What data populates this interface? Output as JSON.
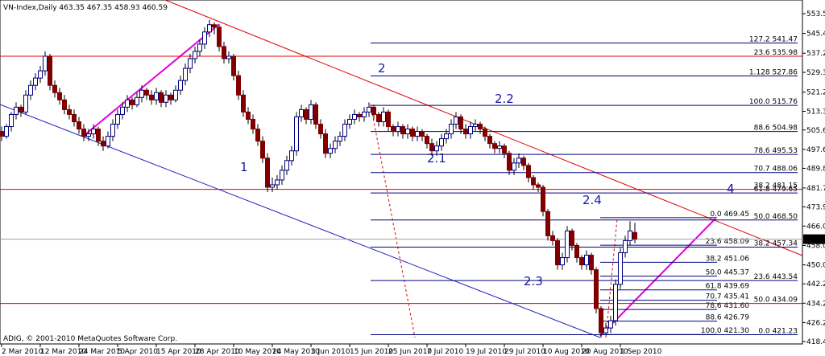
{
  "chart_data": {
    "type": "candlestick",
    "title": "VN-Index,Daily  463.35 467.35 458.93 460.59",
    "copyright": "ADIG, © 2001-2010 MetaQuotes Software Corp.",
    "up_color": "#ffffff",
    "down_color": "#800000",
    "outline_color": "#000080",
    "xlim": [
      0,
      165.5
    ],
    "xticks": [
      {
        "value": 0,
        "label": "2 Mar 2010"
      },
      {
        "value": 8,
        "label": "12 Mar 2010"
      },
      {
        "value": 16,
        "label": "24 Mar 2010"
      },
      {
        "value": 24,
        "label": "5 Apr 2010"
      },
      {
        "value": 32,
        "label": "15 Apr 2010"
      },
      {
        "value": 40,
        "label": "28 Apr 2010"
      },
      {
        "value": 48,
        "label": "10 May 2010"
      },
      {
        "value": 56,
        "label": "24 May 2010"
      },
      {
        "value": 64,
        "label": "3 Jun 2010"
      },
      {
        "value": 72,
        "label": "15 Jun 2010"
      },
      {
        "value": 80,
        "label": "25 Jun 2010"
      },
      {
        "value": 88,
        "label": "7 Jul 2010"
      },
      {
        "value": 96,
        "label": "19 Jul 2010"
      },
      {
        "value": 104,
        "label": "29 Jul 2010"
      },
      {
        "value": 112,
        "label": "10 Aug 2010"
      },
      {
        "value": 120,
        "label": "20 Aug 2010"
      },
      {
        "value": 128,
        "label": "1 Sep 2010"
      }
    ],
    "ylim": [
      418.4,
      553.55
    ],
    "yticks": [
      553.55,
      {
        "value": 545.4,
        "label": "545.40"
      },
      537.25,
      529.35,
      {
        "value": 521.2,
        "label": "521.20"
      },
      {
        "value": 513.3,
        "label": "513.30"
      },
      {
        "value": 505.6,
        "label": "505.60"
      },
      {
        "value": 497.6,
        "label": "497.60"
      },
      {
        "value": 489.8,
        "label": "489.80"
      },
      {
        "value": 481.7,
        "label": "481.70"
      },
      {
        "value": 473.9,
        "label": "473.90"
      },
      {
        "value": 466,
        "label": "466.00"
      },
      {
        "value": 458,
        "label": "458.00"
      },
      {
        "value": 450,
        "label": "450.00"
      },
      {
        "value": 442.2,
        "label": "442.20"
      },
      {
        "value": 434.2,
        "label": "434.20"
      },
      {
        "value": 426.2,
        "label": "426.20"
      },
      {
        "value": 418.4,
        "label": "418.40"
      }
    ],
    "last_price": {
      "value": 460.59,
      "label": "460.59"
    },
    "candles": [
      [
        505,
        507,
        501,
        503
      ],
      [
        503,
        508,
        502,
        507
      ],
      [
        507,
        513,
        505,
        512
      ],
      [
        512,
        517,
        510,
        515
      ],
      [
        515,
        516,
        511,
        513
      ],
      [
        513,
        522,
        512,
        520
      ],
      [
        520,
        526,
        518,
        524
      ],
      [
        524,
        529,
        522,
        527
      ],
      [
        527,
        532,
        525,
        530
      ],
      [
        530,
        538,
        528,
        536
      ],
      [
        536,
        537,
        522,
        524
      ],
      [
        524,
        526,
        519,
        521
      ],
      [
        521,
        523,
        516,
        518
      ],
      [
        518,
        520,
        512,
        514
      ],
      [
        514,
        516,
        510,
        512
      ],
      [
        512,
        514,
        507,
        509
      ],
      [
        509,
        511,
        504,
        506
      ],
      [
        506,
        508,
        501,
        503
      ],
      [
        503,
        506,
        501,
        504
      ],
      [
        504,
        508,
        502,
        506
      ],
      [
        506,
        507,
        499,
        501
      ],
      [
        501,
        503,
        497,
        499
      ],
      [
        499,
        505,
        498,
        503
      ],
      [
        503,
        510,
        501,
        508
      ],
      [
        508,
        514,
        506,
        512
      ],
      [
        512,
        517,
        510,
        515
      ],
      [
        515,
        520,
        513,
        518
      ],
      [
        518,
        519,
        514,
        516
      ],
      [
        516,
        521,
        515,
        519
      ],
      [
        519,
        524,
        517,
        522
      ],
      [
        522,
        523,
        518,
        520
      ],
      [
        520,
        522,
        516,
        518
      ],
      [
        518,
        523,
        516,
        521
      ],
      [
        521,
        522,
        515,
        517
      ],
      [
        517,
        522,
        515,
        520
      ],
      [
        520,
        521,
        516,
        518
      ],
      [
        518,
        524,
        517,
        522
      ],
      [
        522,
        528,
        520,
        526
      ],
      [
        526,
        533,
        524,
        531
      ],
      [
        531,
        537,
        529,
        535
      ],
      [
        535,
        540,
        533,
        538
      ],
      [
        538,
        543,
        536,
        541
      ],
      [
        541,
        548,
        539,
        546
      ],
      [
        546,
        551,
        544,
        549
      ],
      [
        549,
        550,
        545,
        548
      ],
      [
        548,
        549,
        538,
        540
      ],
      [
        540,
        542,
        533,
        535
      ],
      [
        535,
        538,
        533,
        536
      ],
      [
        536,
        537,
        526,
        528
      ],
      [
        528,
        530,
        518,
        520
      ],
      [
        520,
        522,
        511,
        513
      ],
      [
        513,
        515,
        508,
        510
      ],
      [
        510,
        512,
        504,
        506
      ],
      [
        506,
        508,
        499,
        501
      ],
      [
        501,
        503,
        492,
        494
      ],
      [
        494,
        496,
        480,
        482
      ],
      [
        482,
        486,
        480,
        483
      ],
      [
        483,
        487,
        481,
        485
      ],
      [
        485,
        491,
        483,
        489
      ],
      [
        489,
        495,
        487,
        493
      ],
      [
        493,
        499,
        491,
        497
      ],
      [
        497,
        513,
        495,
        511
      ],
      [
        511,
        516,
        509,
        514
      ],
      [
        514,
        515,
        508,
        510
      ],
      [
        510,
        518,
        508,
        516
      ],
      [
        516,
        517,
        506,
        508
      ],
      [
        508,
        510,
        502,
        504
      ],
      [
        504,
        506,
        494,
        496
      ],
      [
        496,
        500,
        494,
        498
      ],
      [
        498,
        503,
        496,
        501
      ],
      [
        501,
        505,
        499,
        503
      ],
      [
        503,
        510,
        501,
        508
      ],
      [
        508,
        512,
        506,
        510
      ],
      [
        510,
        514,
        508,
        512
      ],
      [
        512,
        513,
        509,
        511
      ],
      [
        511,
        515,
        509,
        513
      ],
      [
        513,
        517,
        511,
        515
      ],
      [
        515,
        516,
        510,
        512
      ],
      [
        512,
        513,
        507,
        509
      ],
      [
        509,
        515,
        507,
        513
      ],
      [
        513,
        514,
        505,
        507
      ],
      [
        507,
        508,
        503,
        505
      ],
      [
        505,
        509,
        503,
        507
      ],
      [
        507,
        508,
        502,
        504
      ],
      [
        504,
        508,
        502,
        506
      ],
      [
        506,
        507,
        501,
        503
      ],
      [
        503,
        507,
        501,
        505
      ],
      [
        505,
        506,
        501,
        503
      ],
      [
        503,
        504,
        498,
        500
      ],
      [
        500,
        502,
        495,
        497
      ],
      [
        497,
        501,
        495,
        499
      ],
      [
        499,
        504,
        497,
        502
      ],
      [
        502,
        506,
        500,
        504
      ],
      [
        504,
        510,
        502,
        508
      ],
      [
        508,
        513,
        506,
        511
      ],
      [
        511,
        512,
        504,
        506
      ],
      [
        506,
        508,
        502,
        504
      ],
      [
        504,
        509,
        502,
        507
      ],
      [
        507,
        510,
        505,
        508
      ],
      [
        508,
        509,
        504,
        506
      ],
      [
        506,
        507,
        501,
        503
      ],
      [
        503,
        504,
        498,
        500
      ],
      [
        500,
        501,
        496,
        498
      ],
      [
        498,
        501,
        496,
        499
      ],
      [
        499,
        500,
        494,
        496
      ],
      [
        496,
        497,
        487,
        489
      ],
      [
        489,
        494,
        487,
        492
      ],
      [
        492,
        496,
        490,
        494
      ],
      [
        494,
        495,
        489,
        491
      ],
      [
        491,
        492,
        484,
        486
      ],
      [
        486,
        487,
        481,
        483
      ],
      [
        483,
        484,
        480,
        482
      ],
      [
        482,
        483,
        470,
        472
      ],
      [
        472,
        473,
        460,
        462
      ],
      [
        462,
        464,
        458,
        460
      ],
      [
        460,
        461,
        448,
        450
      ],
      [
        450,
        455,
        448,
        453
      ],
      [
        453,
        466,
        451,
        464
      ],
      [
        464,
        465,
        456,
        458
      ],
      [
        458,
        459,
        451,
        453
      ],
      [
        453,
        454,
        448,
        450
      ],
      [
        450,
        456,
        448,
        454
      ],
      [
        454,
        455,
        446,
        448
      ],
      [
        448,
        449,
        430,
        432
      ],
      [
        432,
        433,
        420,
        422
      ],
      [
        422,
        426,
        421,
        424
      ],
      [
        424,
        429,
        422,
        427
      ],
      [
        427,
        444,
        425,
        442
      ],
      [
        442,
        457,
        440,
        455
      ],
      [
        455,
        462,
        453,
        460
      ],
      [
        460,
        468,
        458,
        464
      ],
      [
        463.35,
        467.35,
        458.93,
        460.59
      ]
    ],
    "fib_long": [
      {
        "label": "127.2  541.47",
        "value": 541.47
      },
      {
        "label": "1.128  527.86",
        "value": 527.86
      },
      {
        "label": "100.0  515.76",
        "value": 515.76
      },
      {
        "label": "88.6  504.98",
        "value": 504.98
      },
      {
        "label": "78.6  495.53",
        "value": 495.53
      },
      {
        "label": "70.7  488.06",
        "value": 488.06
      },
      {
        "label": "61.8  479.65",
        "value": 479.65
      },
      {
        "label": "50.0  468.50",
        "value": 468.5
      },
      {
        "label": "38.2  457.34",
        "value": 457.34
      },
      {
        "label": "23.6  443.54",
        "value": 443.54
      },
      {
        "label": "0.0  421.23",
        "value": 421.23
      }
    ],
    "fib_short": [
      {
        "label": "0.0  469.45",
        "value": 469.45
      },
      {
        "label": "23.6  458.09",
        "value": 458.09
      },
      {
        "label": "38.2  451.06",
        "value": 451.06
      },
      {
        "label": "50.0  445.37",
        "value": 445.37
      },
      {
        "label": "61.8  439.69",
        "value": 439.69
      },
      {
        "label": "70.7  435.41",
        "value": 435.41
      },
      {
        "label": "78.6  431.60",
        "value": 431.6
      },
      {
        "label": "88.6  426.79",
        "value": 426.79
      },
      {
        "label": "100.0  421.30",
        "value": 421.3
      }
    ],
    "fib_red": [
      {
        "label": "23.6  535.98",
        "value": 535.98
      },
      {
        "label": "38.2  481.15",
        "value": 481.15
      },
      {
        "label": "50.0  434.09",
        "value": 434.09
      }
    ],
    "line_color": "#000080",
    "red_color": "#e00000",
    "waves": [
      "1",
      "2",
      "2.1",
      "2.2",
      "2.3",
      "2.4",
      "4"
    ]
  }
}
